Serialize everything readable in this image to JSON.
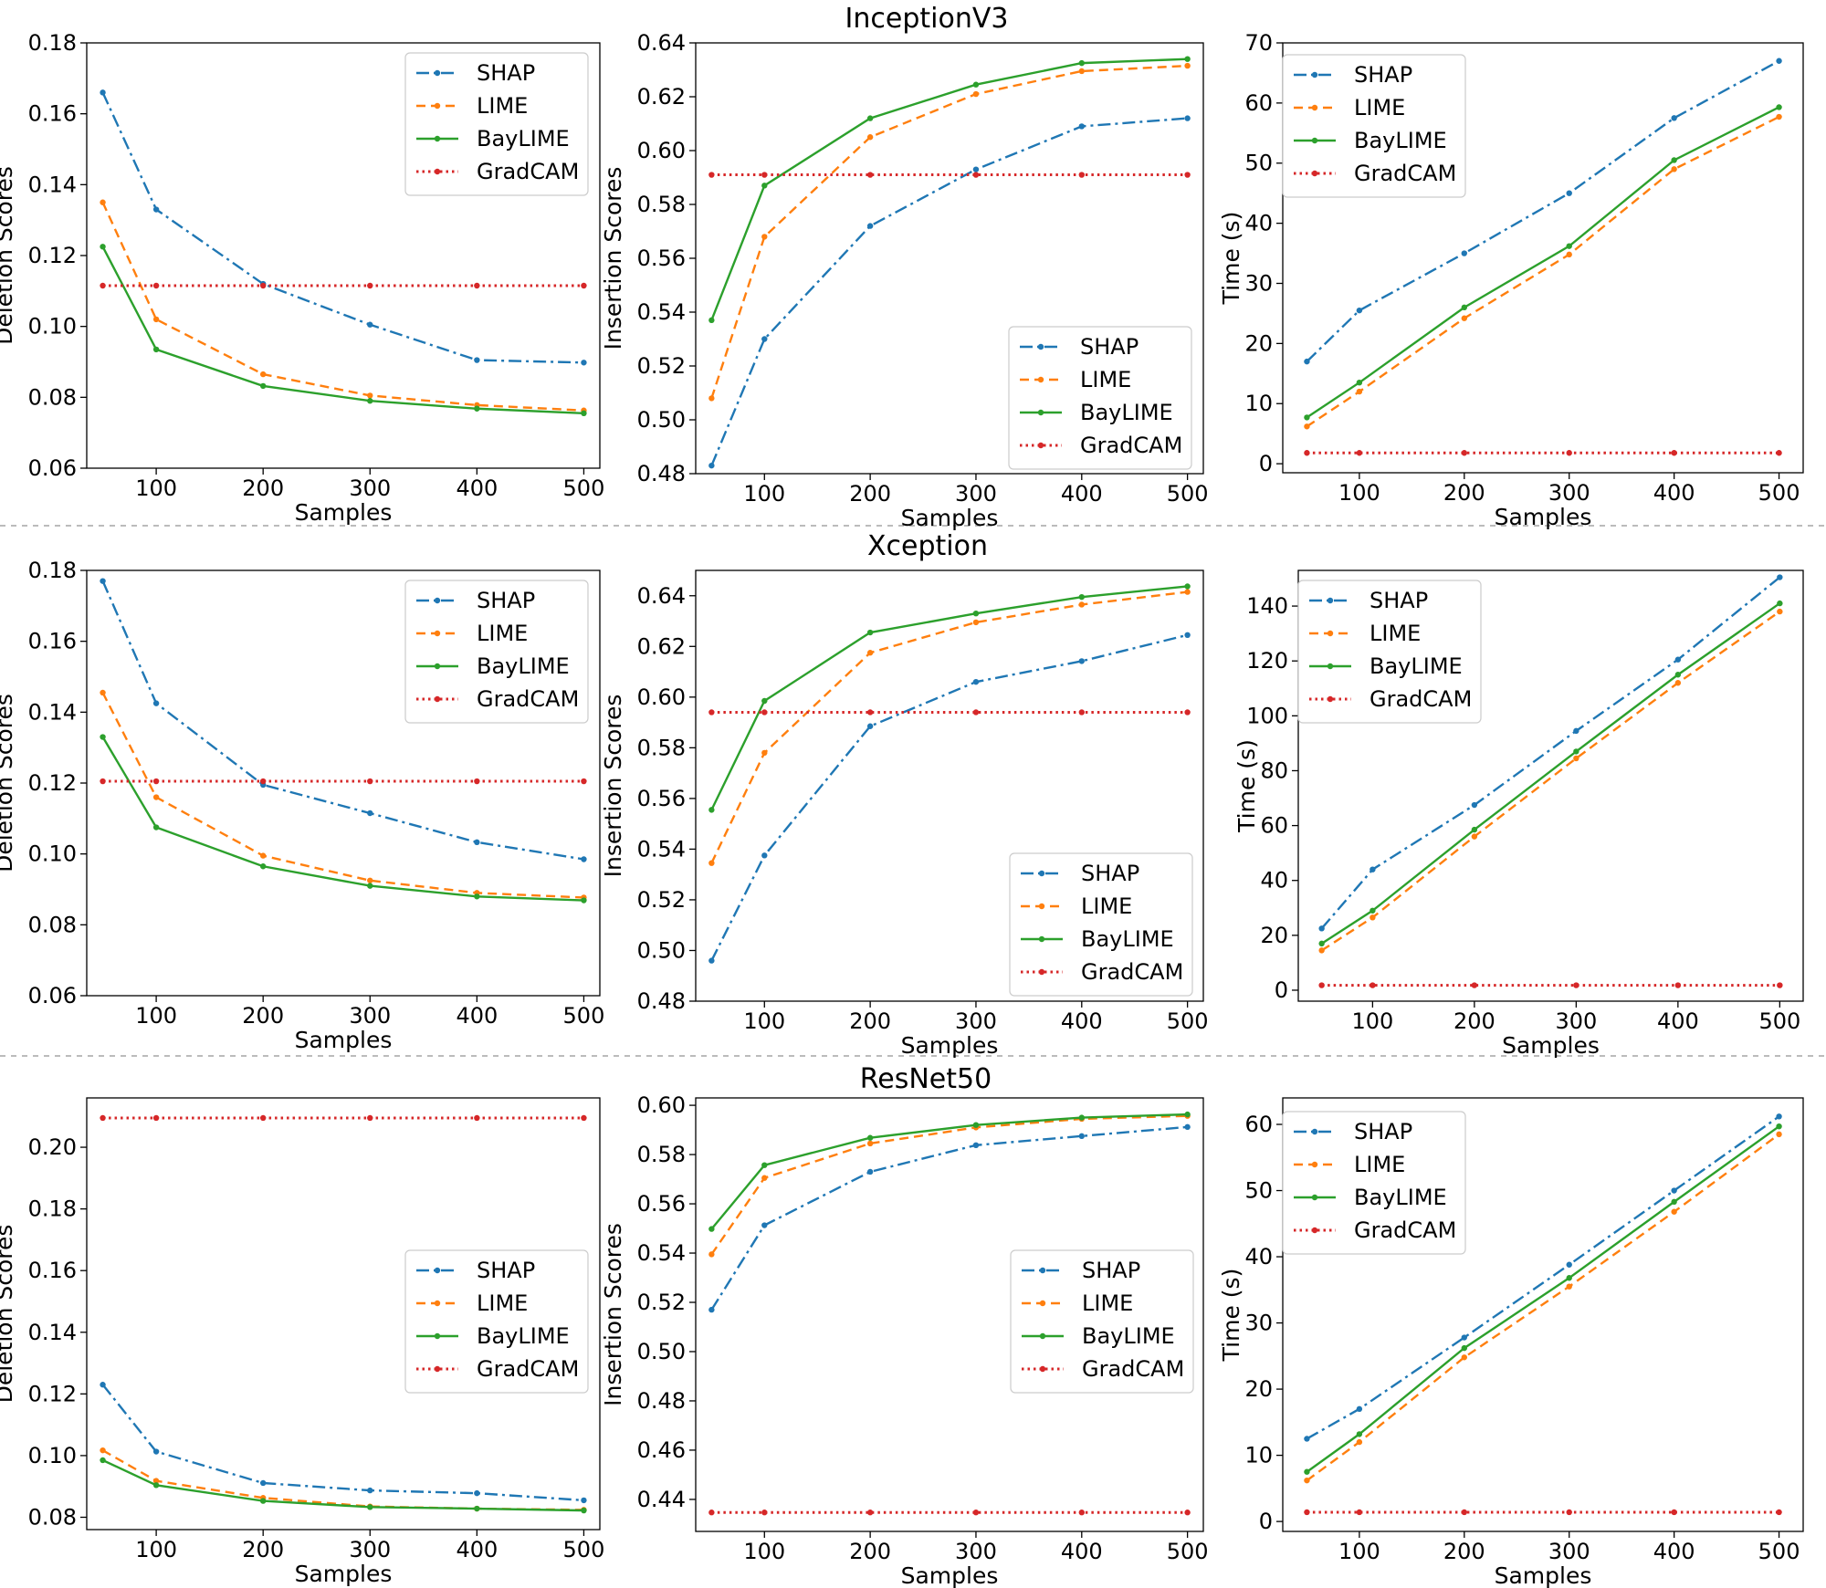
{
  "figure": {
    "row_titles": [
      "InceptionV3",
      "Xception",
      "ResNet50"
    ]
  },
  "colors": {
    "SHAP": "#1f77b4",
    "LIME": "#ff7f0e",
    "BayLIME": "#2ca02c",
    "GradCAM": "#d62728",
    "divider": "#bbbbbb"
  },
  "chart_data": [
    {
      "type": "line",
      "model": "InceptionV3",
      "title": "",
      "xlabel": "Samples",
      "ylabel": "Deletion Scores",
      "x": [
        50,
        100,
        200,
        300,
        400,
        500
      ],
      "xticks": [
        100,
        200,
        300,
        400,
        500
      ],
      "xlim": [
        35,
        515
      ],
      "ylim": [
        0.06,
        0.18
      ],
      "yticks": [
        "0.06",
        "0.08",
        "0.10",
        "0.12",
        "0.14",
        "0.16",
        "0.18"
      ],
      "legend": "top-right",
      "series": [
        {
          "name": "SHAP",
          "values": [
            0.166,
            0.133,
            0.112,
            0.1005,
            0.0905,
            0.0898
          ]
        },
        {
          "name": "LIME",
          "values": [
            0.135,
            0.102,
            0.0865,
            0.0805,
            0.0778,
            0.0763
          ]
        },
        {
          "name": "BayLIME",
          "values": [
            0.1225,
            0.0935,
            0.0832,
            0.079,
            0.0768,
            0.0755
          ]
        },
        {
          "name": "GradCAM",
          "values": [
            0.1115,
            0.1115,
            0.1115,
            0.1115,
            0.1115,
            0.1115
          ]
        }
      ]
    },
    {
      "type": "line",
      "model": "InceptionV3",
      "title": "",
      "xlabel": "Samples",
      "ylabel": "Insertion Scores",
      "x": [
        50,
        100,
        200,
        300,
        400,
        500
      ],
      "xticks": [
        100,
        200,
        300,
        400,
        500
      ],
      "xlim": [
        35,
        515
      ],
      "ylim": [
        0.48,
        0.64
      ],
      "yticks": [
        "0.48",
        "0.50",
        "0.52",
        "0.54",
        "0.56",
        "0.58",
        "0.60",
        "0.62",
        "0.64"
      ],
      "legend": "bottom-right",
      "series": [
        {
          "name": "SHAP",
          "values": [
            0.483,
            0.53,
            0.572,
            0.593,
            0.609,
            0.612
          ]
        },
        {
          "name": "LIME",
          "values": [
            0.508,
            0.568,
            0.605,
            0.621,
            0.6295,
            0.6315
          ]
        },
        {
          "name": "BayLIME",
          "values": [
            0.537,
            0.587,
            0.612,
            0.6245,
            0.6325,
            0.634
          ]
        },
        {
          "name": "GradCAM",
          "values": [
            0.591,
            0.591,
            0.591,
            0.591,
            0.591,
            0.591
          ]
        }
      ]
    },
    {
      "type": "line",
      "model": "InceptionV3",
      "title": "",
      "xlabel": "Samples",
      "ylabel": "Time (s)",
      "x": [
        50,
        100,
        200,
        300,
        400,
        500
      ],
      "xticks": [
        100,
        200,
        300,
        400,
        500
      ],
      "xlim": [
        27,
        523
      ],
      "ylim": [
        -1.5,
        70
      ],
      "yticks": [
        "0",
        "10",
        "20",
        "30",
        "40",
        "50",
        "60",
        "70"
      ],
      "legend": "top-left",
      "series": [
        {
          "name": "SHAP",
          "values": [
            17,
            25.5,
            35,
            45,
            57.5,
            67
          ]
        },
        {
          "name": "LIME",
          "values": [
            6.2,
            12,
            24.2,
            34.8,
            49,
            57.7
          ]
        },
        {
          "name": "BayLIME",
          "values": [
            7.7,
            13.5,
            26,
            36.2,
            50.5,
            59.3
          ]
        },
        {
          "name": "GradCAM",
          "values": [
            1.8,
            1.8,
            1.8,
            1.8,
            1.8,
            1.8
          ]
        }
      ]
    },
    {
      "type": "line",
      "model": "Xception",
      "title": "",
      "xlabel": "Samples",
      "ylabel": "Deletion Scores",
      "x": [
        50,
        100,
        200,
        300,
        400,
        500
      ],
      "xticks": [
        100,
        200,
        300,
        400,
        500
      ],
      "xlim": [
        35,
        515
      ],
      "ylim": [
        0.06,
        0.18
      ],
      "yticks": [
        "0.06",
        "0.08",
        "0.10",
        "0.12",
        "0.14",
        "0.16",
        "0.18"
      ],
      "legend": "top-right",
      "series": [
        {
          "name": "SHAP",
          "values": [
            0.177,
            0.1425,
            0.1195,
            0.1115,
            0.1033,
            0.0985
          ]
        },
        {
          "name": "LIME",
          "values": [
            0.1455,
            0.116,
            0.0995,
            0.0925,
            0.089,
            0.0877
          ]
        },
        {
          "name": "BayLIME",
          "values": [
            0.133,
            0.1075,
            0.0965,
            0.091,
            0.088,
            0.0869
          ]
        },
        {
          "name": "GradCAM",
          "values": [
            0.1205,
            0.1205,
            0.1205,
            0.1205,
            0.1205,
            0.1205
          ]
        }
      ]
    },
    {
      "type": "line",
      "model": "Xception",
      "title": "",
      "xlabel": "Samples",
      "ylabel": "Insertion Scores",
      "x": [
        50,
        100,
        200,
        300,
        400,
        500
      ],
      "xticks": [
        100,
        200,
        300,
        400,
        500
      ],
      "xlim": [
        35,
        515
      ],
      "ylim": [
        0.48,
        0.65
      ],
      "yticks": [
        "0.48",
        "0.50",
        "0.52",
        "0.54",
        "0.56",
        "0.58",
        "0.60",
        "0.62",
        "0.64"
      ],
      "legend": "bottom-right",
      "series": [
        {
          "name": "SHAP",
          "values": [
            0.496,
            0.5375,
            0.5885,
            0.606,
            0.6142,
            0.6245
          ]
        },
        {
          "name": "LIME",
          "values": [
            0.5345,
            0.578,
            0.6175,
            0.6295,
            0.6365,
            0.6415
          ]
        },
        {
          "name": "BayLIME",
          "values": [
            0.5555,
            0.5985,
            0.6255,
            0.633,
            0.6395,
            0.6437
          ]
        },
        {
          "name": "GradCAM",
          "values": [
            0.594,
            0.594,
            0.594,
            0.594,
            0.594,
            0.594
          ]
        }
      ]
    },
    {
      "type": "line",
      "model": "Xception",
      "title": "",
      "xlabel": "Samples",
      "ylabel": "Time (s)",
      "x": [
        50,
        100,
        200,
        300,
        400,
        500
      ],
      "xticks": [
        100,
        200,
        300,
        400,
        500
      ],
      "xlim": [
        27,
        523
      ],
      "ylim": [
        -4,
        153
      ],
      "yticks": [
        "0",
        "20",
        "40",
        "60",
        "80",
        "100",
        "120",
        "140"
      ],
      "legend": "top-left",
      "series": [
        {
          "name": "SHAP",
          "values": [
            22.5,
            44,
            67.5,
            94.5,
            120.5,
            150.5
          ]
        },
        {
          "name": "LIME",
          "values": [
            14.5,
            26.5,
            56,
            84.5,
            112,
            138
          ]
        },
        {
          "name": "BayLIME",
          "values": [
            17,
            29,
            58.5,
            87,
            115,
            141
          ]
        },
        {
          "name": "GradCAM",
          "values": [
            1.8,
            1.8,
            1.8,
            1.8,
            1.8,
            1.8
          ]
        }
      ]
    },
    {
      "type": "line",
      "model": "ResNet50",
      "title": "",
      "xlabel": "Samples",
      "ylabel": "Deletion Scores",
      "x": [
        50,
        100,
        200,
        300,
        400,
        500
      ],
      "xticks": [
        100,
        200,
        300,
        400,
        500
      ],
      "xlim": [
        35,
        515
      ],
      "ylim": [
        0.076,
        0.216
      ],
      "yticks": [
        "0.08",
        "0.10",
        "0.12",
        "0.14",
        "0.16",
        "0.18",
        "0.20"
      ],
      "legend": "center-right",
      "series": [
        {
          "name": "SHAP",
          "values": [
            0.123,
            0.1013,
            0.0911,
            0.0887,
            0.0878,
            0.0855
          ]
        },
        {
          "name": "LIME",
          "values": [
            0.1017,
            0.0918,
            0.0863,
            0.0835,
            0.0828,
            0.0824
          ]
        },
        {
          "name": "BayLIME",
          "values": [
            0.0985,
            0.0904,
            0.0853,
            0.0833,
            0.0828,
            0.0822
          ]
        },
        {
          "name": "GradCAM",
          "values": [
            0.2095,
            0.2095,
            0.2095,
            0.2095,
            0.2095,
            0.2095
          ]
        }
      ]
    },
    {
      "type": "line",
      "model": "ResNet50",
      "title": "",
      "xlabel": "Samples",
      "ylabel": "Insertion Scores",
      "x": [
        50,
        100,
        200,
        300,
        400,
        500
      ],
      "xticks": [
        100,
        200,
        300,
        400,
        500
      ],
      "xlim": [
        35,
        515
      ],
      "ylim": [
        0.427,
        0.603
      ],
      "yticks": [
        "0.44",
        "0.46",
        "0.48",
        "0.50",
        "0.52",
        "0.54",
        "0.56",
        "0.58",
        "0.60"
      ],
      "legend": "center-right",
      "series": [
        {
          "name": "SHAP",
          "values": [
            0.517,
            0.5513,
            0.573,
            0.5838,
            0.5875,
            0.5912
          ]
        },
        {
          "name": "LIME",
          "values": [
            0.5395,
            0.5705,
            0.5845,
            0.591,
            0.5945,
            0.5957
          ]
        },
        {
          "name": "BayLIME",
          "values": [
            0.5498,
            0.5757,
            0.5868,
            0.592,
            0.595,
            0.5963
          ]
        },
        {
          "name": "GradCAM",
          "values": [
            0.4347,
            0.4347,
            0.4347,
            0.4347,
            0.4347,
            0.4347
          ]
        }
      ]
    },
    {
      "type": "line",
      "model": "ResNet50",
      "title": "",
      "xlabel": "Samples",
      "ylabel": "Time (s)",
      "x": [
        50,
        100,
        200,
        300,
        400,
        500
      ],
      "xticks": [
        100,
        200,
        300,
        400,
        500
      ],
      "xlim": [
        27,
        523
      ],
      "ylim": [
        -1.5,
        64
      ],
      "yticks": [
        "0",
        "10",
        "20",
        "30",
        "40",
        "50",
        "60"
      ],
      "legend": "top-left",
      "series": [
        {
          "name": "SHAP",
          "values": [
            12.5,
            17,
            27.8,
            38.8,
            50,
            61.2
          ]
        },
        {
          "name": "LIME",
          "values": [
            6.2,
            12,
            24.8,
            35.5,
            46.8,
            58.5
          ]
        },
        {
          "name": "BayLIME",
          "values": [
            7.5,
            13.2,
            26.2,
            36.8,
            48.3,
            59.7
          ]
        },
        {
          "name": "GradCAM",
          "values": [
            1.4,
            1.4,
            1.4,
            1.4,
            1.4,
            1.4
          ]
        }
      ]
    }
  ]
}
